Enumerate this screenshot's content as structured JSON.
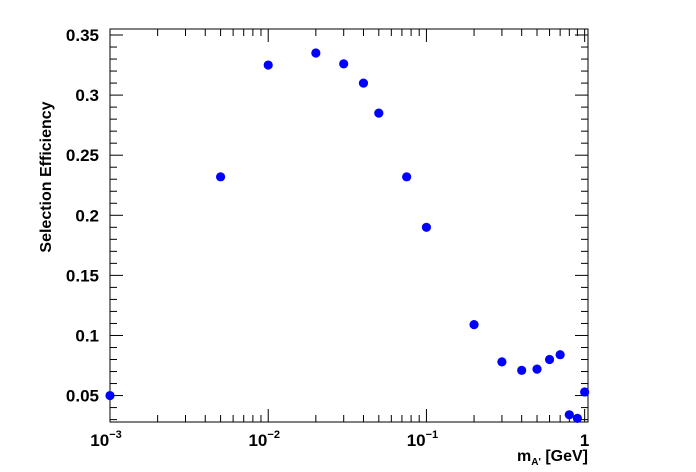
{
  "chart_data": {
    "type": "scatter",
    "xscale": "log",
    "xlim": [
      0.001,
      1.05
    ],
    "ylim": [
      0.028,
      0.355
    ],
    "xlabel": {
      "main": "m",
      "sub": "A'",
      "unit": " [GeV]"
    },
    "ylabel": "Selection Efficiency",
    "grid": false,
    "marker_color": "#0000ff",
    "x_ticks": [
      {
        "value": 0.001,
        "base": "10",
        "exp": "−3"
      },
      {
        "value": 0.01,
        "base": "10",
        "exp": "−2"
      },
      {
        "value": 0.1,
        "base": "10",
        "exp": "−1"
      },
      {
        "value": 1,
        "base": "1",
        "exp": ""
      }
    ],
    "y_ticks": [
      {
        "value": 0.05,
        "label": "0.05"
      },
      {
        "value": 0.1,
        "label": "0.1"
      },
      {
        "value": 0.15,
        "label": "0.15"
      },
      {
        "value": 0.2,
        "label": "0.2"
      },
      {
        "value": 0.25,
        "label": "0.25"
      },
      {
        "value": 0.3,
        "label": "0.3"
      },
      {
        "value": 0.35,
        "label": "0.35"
      }
    ],
    "points": [
      {
        "x": 0.001,
        "y": 0.05
      },
      {
        "x": 0.005,
        "y": 0.232
      },
      {
        "x": 0.01,
        "y": 0.325
      },
      {
        "x": 0.02,
        "y": 0.335
      },
      {
        "x": 0.03,
        "y": 0.326
      },
      {
        "x": 0.04,
        "y": 0.31
      },
      {
        "x": 0.05,
        "y": 0.285
      },
      {
        "x": 0.075,
        "y": 0.232
      },
      {
        "x": 0.1,
        "y": 0.19
      },
      {
        "x": 0.2,
        "y": 0.109
      },
      {
        "x": 0.3,
        "y": 0.078
      },
      {
        "x": 0.4,
        "y": 0.071
      },
      {
        "x": 0.5,
        "y": 0.072
      },
      {
        "x": 0.6,
        "y": 0.08
      },
      {
        "x": 0.7,
        "y": 0.084
      },
      {
        "x": 0.8,
        "y": 0.034
      },
      {
        "x": 0.9,
        "y": 0.031
      },
      {
        "x": 1.0,
        "y": 0.053
      }
    ]
  }
}
